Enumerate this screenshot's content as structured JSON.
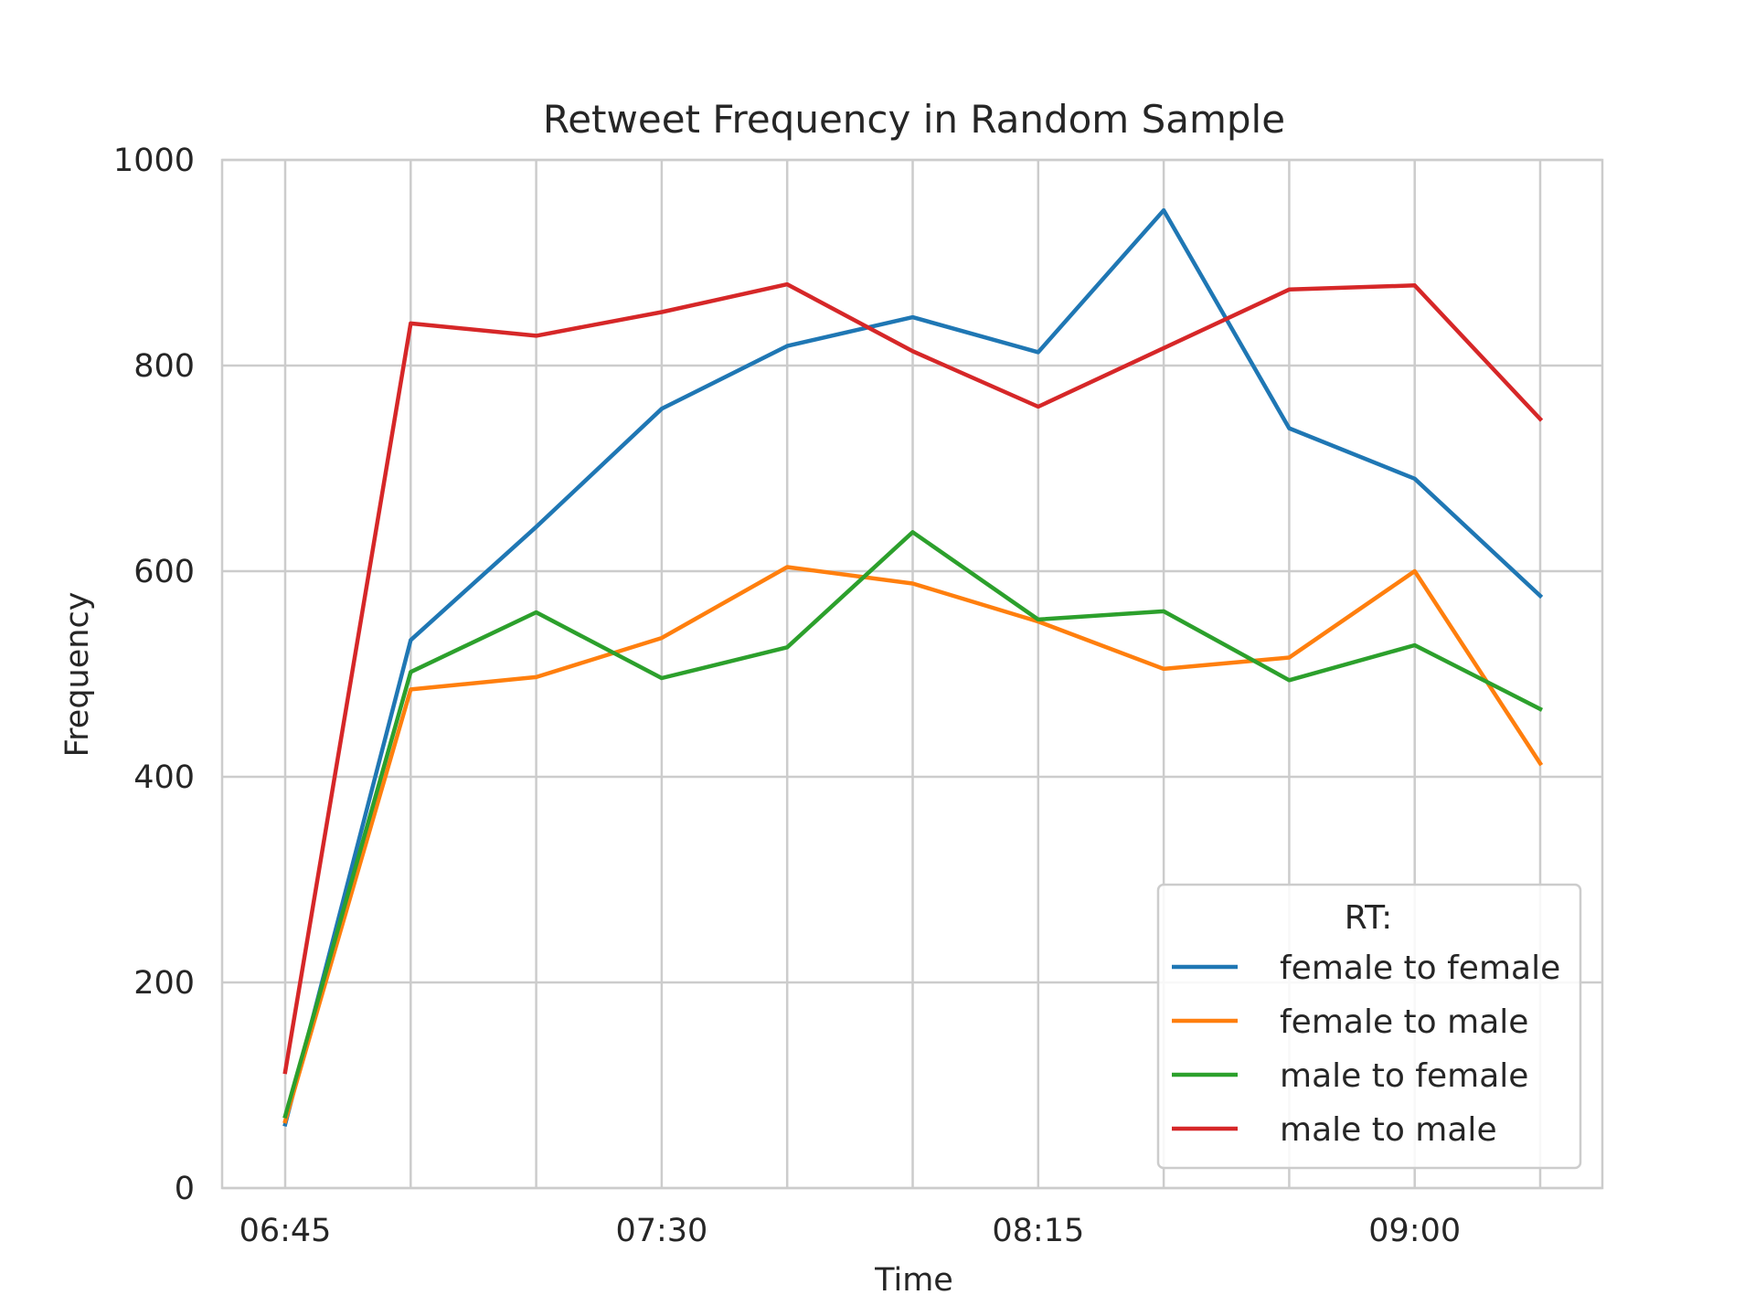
{
  "chart_data": {
    "type": "line",
    "title": "Retweet Frequency in Random Sample",
    "xlabel": "Time",
    "ylabel": "Frequency",
    "x": [
      "06:45",
      "07:00",
      "07:15",
      "07:30",
      "07:45",
      "08:00",
      "08:15",
      "08:30",
      "08:45",
      "09:00",
      "09:15"
    ],
    "x_tick_labels": [
      "06:45",
      "07:30",
      "08:15",
      "09:00"
    ],
    "y_ticks": [
      0,
      200,
      400,
      600,
      800,
      1000
    ],
    "ylim": [
      0,
      1000
    ],
    "grid": true,
    "legend": {
      "title": "RT:",
      "placement": "lower right"
    },
    "series": [
      {
        "name": "female to female",
        "color": "#1f77b4",
        "values": [
          62,
          533,
          643,
          758,
          819,
          847,
          813,
          951,
          739,
          690,
          576
        ]
      },
      {
        "name": "female to male",
        "color": "#ff7f0e",
        "values": [
          65,
          485,
          497,
          535,
          604,
          588,
          551,
          505,
          516,
          600,
          413
        ]
      },
      {
        "name": "male to female",
        "color": "#2ca02c",
        "values": [
          70,
          502,
          560,
          496,
          526,
          638,
          553,
          561,
          494,
          528,
          466
        ]
      },
      {
        "name": "male to male",
        "color": "#d62728",
        "values": [
          113,
          841,
          829,
          852,
          879,
          814,
          760,
          817,
          874,
          878,
          748
        ]
      }
    ]
  }
}
